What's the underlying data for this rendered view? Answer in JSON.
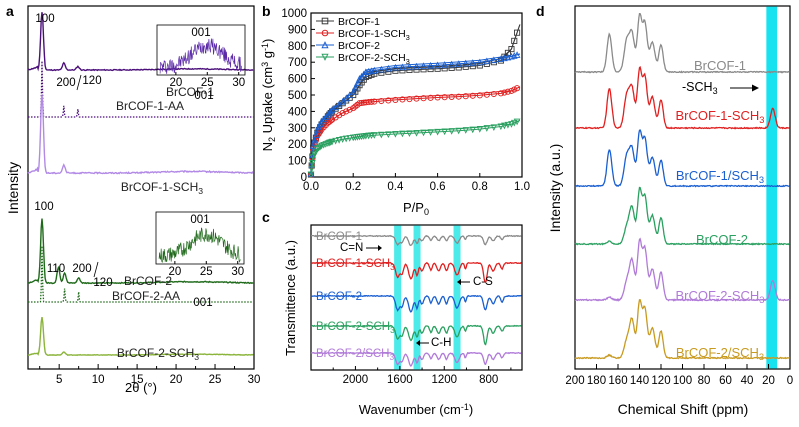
{
  "chart_data": [
    {
      "panel": "a",
      "type": "line",
      "xlabel": "2θ (°)",
      "ylabel": "Intensity",
      "xlim": [
        1,
        30
      ],
      "xticks": [
        5,
        10,
        15,
        20,
        25,
        30
      ],
      "series": [
        {
          "name": "BrCOF-1",
          "color": "#4b0f7a",
          "style": "solid",
          "peaks": [
            [
              2.8,
              1.0
            ],
            [
              5.6,
              0.12
            ],
            [
              7.4,
              0.06
            ]
          ]
        },
        {
          "name": "BrCOF-1-AA",
          "color": "#4b0f7a",
          "style": "dotted",
          "peaks": [
            [
              2.8,
              1.0
            ],
            [
              5.6,
              0.2
            ],
            [
              7.4,
              0.14
            ]
          ]
        },
        {
          "name": "BrCOF-1-SCH3",
          "color": "#b28ae6",
          "style": "solid",
          "peaks": [
            [
              2.8,
              1.0
            ],
            [
              5.6,
              0.1
            ]
          ]
        },
        {
          "name": "BrCOF-2",
          "color": "#1f6a1a",
          "style": "solid",
          "peaks": [
            [
              2.8,
              1.0
            ],
            [
              4.9,
              0.24
            ],
            [
              5.7,
              0.16
            ],
            [
              7.5,
              0.08
            ]
          ]
        },
        {
          "name": "BrCOF-2-AA",
          "color": "#1f6a1a",
          "style": "dotted",
          "peaks": [
            [
              2.8,
              1.0
            ],
            [
              5.7,
              0.24
            ],
            [
              7.5,
              0.18
            ]
          ]
        },
        {
          "name": "BrCOF-2-SCH3",
          "color": "#8ab43a",
          "style": "solid",
          "peaks": [
            [
              2.8,
              1.0
            ],
            [
              5.6,
              0.08
            ]
          ]
        }
      ],
      "annotations": [
        "100",
        "200",
        "120",
        "001",
        "100",
        "110",
        "200",
        "120",
        "001"
      ],
      "insets": [
        {
          "label": "001",
          "xticks": [
            20,
            25,
            30
          ],
          "color": "#5b2aa8"
        },
        {
          "label": "001",
          "xticks": [
            20,
            25,
            30
          ],
          "color": "#1f6a1a"
        }
      ]
    },
    {
      "panel": "b",
      "type": "line",
      "xlabel": "P/P0",
      "ylabel": "N2 Uptake (cm3 g-1)",
      "xlim": [
        0,
        1
      ],
      "ylim": [
        0,
        1000
      ],
      "xticks": [
        "0.0",
        "0.2",
        "0.4",
        "0.6",
        "0.8",
        "1.0"
      ],
      "yticks": [
        "0",
        "100",
        "200",
        "300",
        "400",
        "500",
        "600",
        "700",
        "800",
        "900",
        "1000"
      ],
      "x": [
        0.0,
        0.01,
        0.03,
        0.05,
        0.08,
        0.1,
        0.15,
        0.2,
        0.23,
        0.26,
        0.3,
        0.4,
        0.5,
        0.6,
        0.7,
        0.8,
        0.9,
        0.95,
        0.99
      ],
      "series": [
        {
          "name": "BrCOF-1",
          "color": "#3a3a3a",
          "marker": "square",
          "values": [
            15,
            180,
            270,
            320,
            370,
            400,
            450,
            500,
            560,
            610,
            630,
            648,
            655,
            660,
            668,
            680,
            710,
            780,
            930
          ]
        },
        {
          "name": "BrCOF-1-SCH3",
          "color": "#e02020",
          "marker": "circle",
          "values": [
            15,
            170,
            250,
            290,
            330,
            350,
            390,
            420,
            450,
            455,
            460,
            470,
            478,
            485,
            490,
            498,
            510,
            525,
            550
          ]
        },
        {
          "name": "BrCOF-2",
          "color": "#1a5fd0",
          "marker": "triangle-up",
          "values": [
            20,
            190,
            290,
            340,
            380,
            410,
            460,
            520,
            600,
            640,
            650,
            668,
            675,
            682,
            690,
            700,
            720,
            735,
            750
          ]
        },
        {
          "name": "BrCOF-2-SCH3",
          "color": "#2aa060",
          "marker": "triangle-down",
          "values": [
            15,
            120,
            170,
            190,
            205,
            215,
            230,
            240,
            245,
            250,
            255,
            262,
            268,
            275,
            282,
            292,
            308,
            322,
            345
          ]
        }
      ],
      "legend": "top-left"
    },
    {
      "panel": "c",
      "type": "line",
      "xlabel": "Wavenumber (cm-1)",
      "ylabel": "Transmittence (a.u.)",
      "xlim": [
        2400,
        500
      ],
      "xticks": [
        "2000",
        "1600",
        "1200",
        "800"
      ],
      "xticks_minor": [
        "2200",
        "1800",
        "1400",
        "1000",
        "600"
      ],
      "highlight_bands": [
        1620,
        1445,
        1085
      ],
      "band_color": "#2ee6e6",
      "series": [
        {
          "name": "BrCOF-1",
          "color": "#8a8a8a"
        },
        {
          "name": "BrCOF-1-SCH3",
          "color": "#e02020"
        },
        {
          "name": "BrCOF-2",
          "color": "#1a5fd0"
        },
        {
          "name": "BrCOF-2-SCH3",
          "color": "#2aa060"
        },
        {
          "name": "BrCOF-2/SCH3",
          "color": "#b07ad8"
        }
      ],
      "annotations": [
        "C=N",
        "C-S",
        "C-H"
      ]
    },
    {
      "panel": "d",
      "type": "line",
      "xlabel": "Chemical Shift (ppm)",
      "ylabel": "Intensity (a.u.)",
      "xlim": [
        200,
        0
      ],
      "xticks": [
        "200",
        "180",
        "160",
        "140",
        "120",
        "100",
        "80",
        "60",
        "40",
        "20",
        "0"
      ],
      "highlight_band": [
        22,
        12
      ],
      "band_color": "#17e3f0",
      "series": [
        {
          "name": "BrCOF-1",
          "color": "#8a8a8a"
        },
        {
          "name": "BrCOF-1-SCH3",
          "color": "#e02020"
        },
        {
          "name": "BrCOF-1/SCH3",
          "color": "#1a5fd0"
        },
        {
          "name": "BrCOF-2",
          "color": "#2aa060"
        },
        {
          "name": "BrCOF-2-SCH3",
          "color": "#b07ad8"
        },
        {
          "name": "BrCOF-2/SCH3",
          "color": "#c89a20"
        }
      ],
      "annotations": [
        "-SCH3"
      ]
    }
  ]
}
